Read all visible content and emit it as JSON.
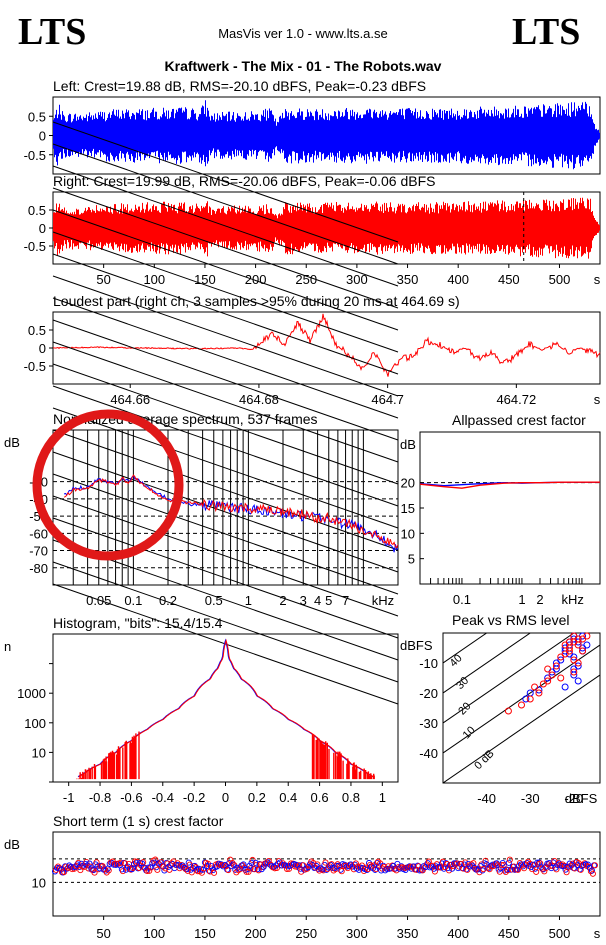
{
  "header": {
    "logo_left": "LTS",
    "logo_right": "LTS",
    "app_title": "MasVis ver 1.0 - www.lts.a.se",
    "file_title": "Kraftwerk - The Mix - 01 - The Robots.wav"
  },
  "colors": {
    "left": "#0000ff",
    "right": "#ff0000",
    "marker": "#e01818"
  },
  "chart_data": [
    {
      "id": "left",
      "type": "area",
      "title": "Left: Crest=19.88 dB, RMS=-20.10 dBFS, Peak=-0.23 dBFS",
      "ylim": [
        -1,
        1
      ],
      "xlim": [
        0,
        540
      ],
      "yticks": [
        "0.5",
        "0",
        "-0.5"
      ],
      "envelope": {
        "x": [
          0,
          5,
          10,
          30,
          60,
          100,
          130,
          145,
          150,
          155,
          200,
          215,
          220,
          230,
          260,
          300,
          360,
          420,
          470,
          500,
          520,
          530,
          535,
          540
        ],
        "y": [
          0.5,
          0.85,
          0.6,
          0.6,
          0.7,
          0.72,
          0.75,
          0.7,
          0.95,
          0.6,
          0.65,
          0.72,
          0.4,
          0.75,
          0.7,
          0.75,
          0.72,
          0.75,
          0.8,
          0.85,
          0.9,
          0.85,
          0.3,
          0.05
        ]
      }
    },
    {
      "id": "right",
      "type": "area",
      "title": "Right: Crest=19.99 dB, RMS=-20.06 dBFS, Peak=-0.06 dBFS",
      "ylim": [
        -1,
        1
      ],
      "xlim": [
        0,
        540
      ],
      "yticks": [
        "0.5",
        "0",
        "-0.5"
      ],
      "xticks": [
        50,
        100,
        150,
        200,
        250,
        300,
        350,
        400,
        450,
        500
      ],
      "xunit": "s",
      "marker_x": 464.69,
      "envelope": {
        "x": [
          0,
          5,
          10,
          30,
          60,
          100,
          130,
          145,
          150,
          155,
          200,
          215,
          220,
          230,
          260,
          300,
          360,
          420,
          470,
          500,
          520,
          530,
          535,
          540
        ],
        "y": [
          0.5,
          0.85,
          0.6,
          0.6,
          0.7,
          0.72,
          0.75,
          0.7,
          0.95,
          0.6,
          0.65,
          0.72,
          0.4,
          0.75,
          0.7,
          0.75,
          0.72,
          0.75,
          0.8,
          0.85,
          0.9,
          0.85,
          0.3,
          0.05
        ]
      }
    },
    {
      "id": "loudest",
      "type": "line",
      "title": "Loudest part (right ch, 3 samples >95% during 20 ms at 464.69 s)",
      "ylim": [
        -1,
        1
      ],
      "xlim": [
        464.648,
        464.733
      ],
      "yticks": [
        "0.5",
        "0",
        "-0.5"
      ],
      "xticks": [
        "464.66",
        "464.68",
        "464.7",
        "464.72"
      ],
      "xunit": "s",
      "x": [
        464.648,
        464.655,
        464.662,
        464.67,
        464.677,
        464.679,
        464.68,
        464.682,
        464.684,
        464.686,
        464.688,
        464.69,
        464.692,
        464.694,
        464.696,
        464.698,
        464.7,
        464.702,
        464.704,
        464.706,
        464.708,
        464.71,
        464.712,
        464.714,
        464.716,
        464.718,
        464.72,
        464.722,
        464.724,
        464.726,
        464.728,
        464.73,
        464.733
      ],
      "y": [
        0.0,
        0.02,
        0.0,
        -0.02,
        0.0,
        -0.05,
        0.15,
        0.4,
        0.1,
        0.7,
        0.2,
        0.9,
        0.1,
        -0.2,
        -0.55,
        -0.1,
        -0.75,
        -0.3,
        -0.25,
        0.2,
        0.1,
        -0.1,
        0.0,
        -0.3,
        -0.1,
        -0.45,
        -0.2,
        0.1,
        -0.05,
        0.1,
        -0.1,
        0.0,
        -0.2
      ]
    },
    {
      "id": "spectrum",
      "type": "line",
      "title": "Normalized average spectrum, 537 frames",
      "ylabel": "dB",
      "ylim": [
        -90,
        0
      ],
      "yticks": [
        "-30",
        "-40",
        "-50",
        "-60",
        "-70",
        "-80"
      ],
      "xlim": [
        0.02,
        20
      ],
      "xscale": "log",
      "xticks": [
        "0.05",
        "0.1",
        "0.2",
        "0.5",
        "1",
        "2",
        "3",
        "4",
        "5",
        "7"
      ],
      "xunit": "kHz",
      "series": [
        {
          "color": "blue",
          "x": [
            0.025,
            0.03,
            0.04,
            0.05,
            0.06,
            0.07,
            0.08,
            0.09,
            0.1,
            0.12,
            0.15,
            0.2,
            0.3,
            0.5,
            0.7,
            1,
            1.5,
            2,
            3,
            4,
            5,
            6,
            7,
            8,
            10,
            13,
            16,
            20
          ],
          "y": [
            -38,
            -34,
            -33,
            -28,
            -30,
            -31,
            -28,
            -30,
            -27,
            -31,
            -36,
            -40,
            -43,
            -44,
            -45,
            -46,
            -47,
            -49,
            -50,
            -51,
            -52,
            -53,
            -55,
            -55,
            -57,
            -61,
            -65,
            -70
          ]
        },
        {
          "color": "red",
          "x": [
            0.025,
            0.03,
            0.04,
            0.05,
            0.06,
            0.07,
            0.08,
            0.09,
            0.1,
            0.12,
            0.15,
            0.2,
            0.3,
            0.5,
            0.7,
            1,
            1.5,
            2,
            3,
            4,
            5,
            6,
            7,
            8,
            10,
            13,
            16,
            20
          ],
          "y": [
            -39,
            -35,
            -34,
            -29,
            -30,
            -32,
            -28,
            -31,
            -27,
            -32,
            -36,
            -41,
            -42,
            -44,
            -46,
            -45,
            -47,
            -48,
            -49,
            -52,
            -51,
            -54,
            -54,
            -56,
            -58,
            -60,
            -64,
            -69
          ]
        }
      ]
    },
    {
      "id": "allpassed",
      "type": "line",
      "title": "Allpassed crest factor",
      "ylabel": "dB",
      "ylim": [
        0,
        30
      ],
      "yticks": [
        "20",
        "15",
        "10",
        "5"
      ],
      "xlim": [
        0.02,
        20
      ],
      "xscale": "log",
      "xticks": [
        "0.1",
        "1",
        "2",
        "kHz"
      ],
      "series": [
        {
          "color": "blue",
          "x": [
            0.02,
            0.05,
            0.1,
            0.2,
            0.5,
            1,
            2,
            5,
            10,
            20
          ],
          "y": [
            19.8,
            19.4,
            19.6,
            19.8,
            20,
            19.9,
            20,
            20.1,
            20.1,
            20.1
          ]
        },
        {
          "color": "red",
          "x": [
            0.02,
            0.05,
            0.1,
            0.2,
            0.5,
            1,
            2,
            5,
            10,
            20
          ],
          "y": [
            19.7,
            19.2,
            18.9,
            19.5,
            19.9,
            20,
            20,
            20.1,
            20.1,
            20.1
          ]
        }
      ]
    },
    {
      "id": "histogram",
      "type": "line",
      "title": "Histogram, \"bits\": 15.4/15.4",
      "ylabel": "n",
      "yscale": "log",
      "ylim": [
        1,
        100000
      ],
      "yticks": [
        "1000",
        "100",
        "10"
      ],
      "xlim": [
        -1.1,
        1.1
      ],
      "xticks": [
        "-1",
        "-0.8",
        "-0.6",
        "-0.4",
        "-0.2",
        "0",
        "0.2",
        "0.4",
        "0.6",
        "0.8",
        "1"
      ],
      "x": [
        -0.94,
        -0.9,
        -0.8,
        -0.7,
        -0.6,
        -0.5,
        -0.4,
        -0.3,
        -0.2,
        -0.1,
        -0.05,
        -0.02,
        0,
        0.02,
        0.05,
        0.1,
        0.2,
        0.3,
        0.4,
        0.5,
        0.6,
        0.7,
        0.8,
        0.9,
        0.94
      ],
      "y": [
        1.5,
        2,
        4,
        10,
        25,
        60,
        130,
        300,
        800,
        3000,
        7000,
        15000,
        60000,
        15000,
        7000,
        3000,
        800,
        300,
        130,
        60,
        25,
        10,
        4,
        2,
        1.5
      ]
    },
    {
      "id": "peakrms",
      "type": "scatter",
      "title": "Peak vs RMS level",
      "ylabel": "dBFS",
      "xunit": "dBFS",
      "xlim": [
        -50,
        -14
      ],
      "ylim": [
        -50,
        0
      ],
      "yticks": [
        "-10",
        "-20",
        "-30",
        "-40"
      ],
      "xticks": [
        "-40",
        "-30",
        "-20"
      ],
      "diagonal_labels": [
        "40",
        "30",
        "20",
        "10",
        "0 dB"
      ],
      "series": [
        {
          "color": "blue",
          "x": [
            -20,
            -19,
            -18,
            -21,
            -22,
            -20,
            -19,
            -23,
            -24,
            -20,
            -18,
            -21,
            -22,
            -19,
            -25,
            -26,
            -20,
            -21,
            -28,
            -30,
            -17,
            -19,
            -20,
            -22,
            -18,
            -24,
            -31
          ],
          "y": [
            -2,
            -3,
            -5,
            -4,
            -6,
            -8,
            -2,
            -9,
            -10,
            -12,
            -1,
            -7,
            -5,
            -11,
            -13,
            -15,
            -1,
            -3,
            -19,
            -20,
            -4,
            -16,
            -14,
            -18,
            -6,
            -12,
            -22
          ]
        },
        {
          "color": "red",
          "x": [
            -20,
            -19,
            -18,
            -21,
            -22,
            -20,
            -19,
            -23,
            -24,
            -20,
            -18,
            -21,
            -22,
            -19,
            -25,
            -26,
            -20,
            -21,
            -28,
            -30,
            -17,
            -27,
            -29,
            -32,
            -23,
            -26,
            -35
          ],
          "y": [
            -1,
            -4,
            -6,
            -3,
            -7,
            -9,
            -2,
            -8,
            -11,
            -13,
            -2,
            -6,
            -4,
            -10,
            -14,
            -12,
            -3,
            -5,
            -20,
            -22,
            -1,
            -17,
            -18,
            -24,
            -15,
            -16,
            -26
          ]
        }
      ]
    },
    {
      "id": "crest",
      "type": "scatter",
      "title": "Short term (1 s) crest factor",
      "ylabel": "dB",
      "ylim": [
        0,
        25
      ],
      "yticks": [
        "10"
      ],
      "xlim": [
        0,
        540
      ],
      "xticks": [
        50,
        100,
        150,
        200,
        250,
        300,
        350,
        400,
        450,
        500
      ],
      "xunit": "s",
      "refs": [
        10,
        17
      ]
    }
  ]
}
